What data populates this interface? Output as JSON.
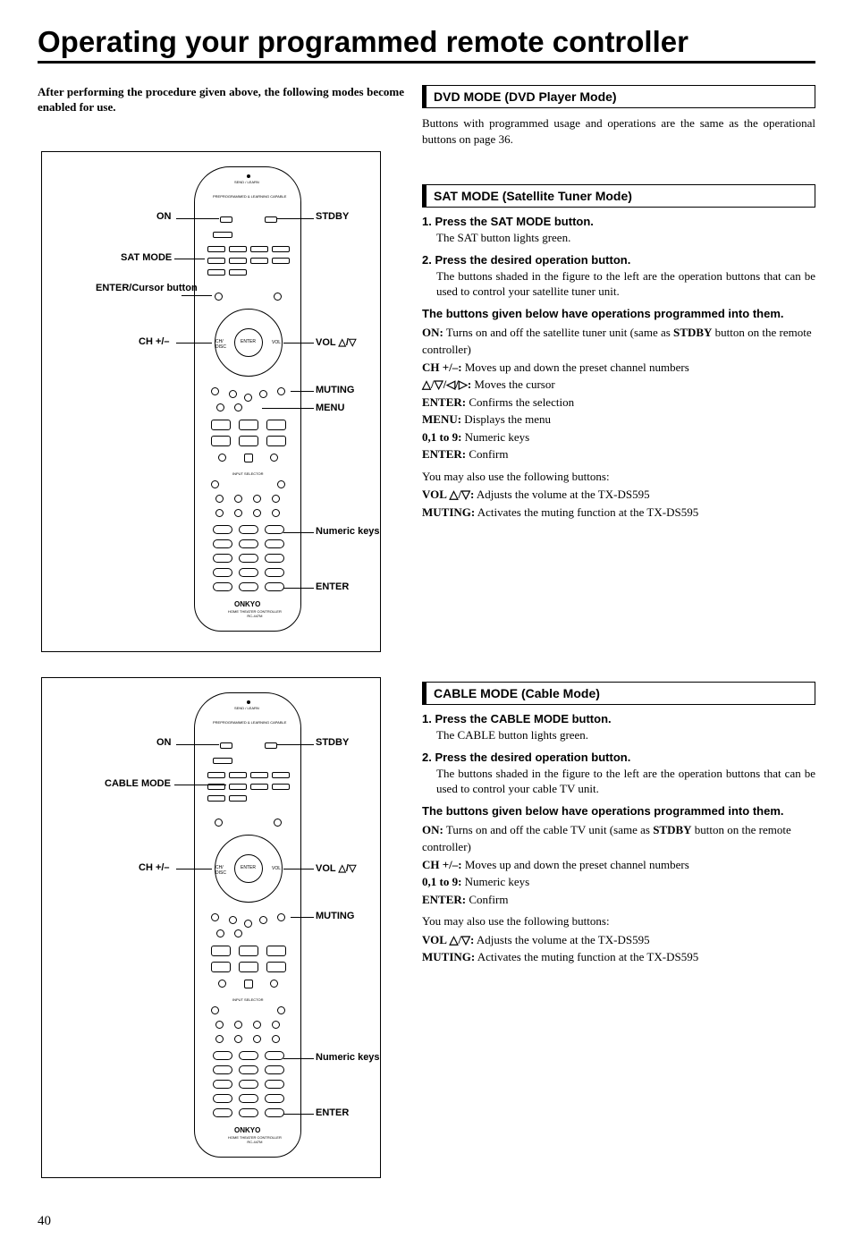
{
  "page_title": "Operating your programmed remote controller",
  "intro": "After performing the procedure given above, the following modes become enabled for use.",
  "page_number": "40",
  "remote_brand": "ONKYO",
  "remote_sublabel": "HOME THEATER CONTROLLER\nRC-447M",
  "remote_top_label": "PREPROGRAMMED & LEARNING CAPABLE",
  "remote_send_learn": "SEND / LEARN",
  "remote1": {
    "callouts": {
      "on": "ON",
      "stdby": "STDBY",
      "mode": "SAT MODE",
      "enter_cursor": "ENTER/Cursor button",
      "ch": "CH +/–",
      "vol": "VOL △/▽",
      "muting": "MUTING",
      "menu": "MENU",
      "numeric": "Numeric keys",
      "enter": "ENTER"
    }
  },
  "remote2": {
    "callouts": {
      "on": "ON",
      "stdby": "STDBY",
      "mode": "CABLE MODE",
      "ch": "CH +/–",
      "vol": "VOL △/▽",
      "muting": "MUTING",
      "numeric": "Numeric keys",
      "enter": "ENTER"
    }
  },
  "dvd": {
    "header": "DVD MODE (DVD Player Mode)",
    "body": "Buttons with programmed usage and operations are the same as the operational buttons on page 36."
  },
  "sat": {
    "header": "SAT MODE (Satellite Tuner Mode)",
    "step1_head": "1. Press the SAT MODE button.",
    "step1_body": "The SAT button lights green.",
    "step2_head": "2. Press the desired operation button.",
    "step2_body": "The buttons shaded in the figure to the left are the operation buttons that can be used to control your satellite tuner unit.",
    "programmed_head": "The buttons given below have operations programmed into them.",
    "defs": [
      {
        "label": "ON:",
        "text": " Turns on and off the satellite tuner unit (same as ",
        "bold2": "STDBY",
        "text2": " button on the remote controller)"
      },
      {
        "label": "CH +/–:",
        "text": " Moves up and down the preset channel numbers"
      },
      {
        "label": "△/▽/◁/▷:",
        "text": " Moves the cursor"
      },
      {
        "label": "ENTER:",
        "text": " Confirms the selection"
      },
      {
        "label": "MENU:",
        "text": " Displays the menu"
      },
      {
        "label": "0,1 to 9:",
        "text": " Numeric keys"
      },
      {
        "label": "ENTER:",
        "text": " Confirm"
      }
    ],
    "also_use": "You may also use the following buttons:",
    "also_defs": [
      {
        "label": "VOL △/▽:",
        "text": " Adjusts the volume at the TX-DS595"
      },
      {
        "label": "MUTING:",
        "text": " Activates the muting function at the TX-DS595"
      }
    ]
  },
  "cable": {
    "header": "CABLE MODE (Cable Mode)",
    "step1_head": "1. Press the CABLE MODE button.",
    "step1_body": "The CABLE button lights green.",
    "step2_head": "2. Press the desired operation button.",
    "step2_body": "The buttons shaded in the figure to the left are the operation buttons that can be used to control your cable TV unit.",
    "programmed_head": "The buttons given below have operations programmed into them.",
    "defs": [
      {
        "label": "ON:",
        "text": " Turns on and off the cable TV unit (same as ",
        "bold2": "STDBY",
        "text2": " button on the remote controller)"
      },
      {
        "label": "CH +/–:",
        "text": " Moves up and down the preset channel numbers"
      },
      {
        "label": "0,1 to 9:",
        "text": " Numeric keys"
      },
      {
        "label": "ENTER:",
        "text": " Confirm"
      }
    ],
    "also_use": "You may also use the following buttons:",
    "also_defs": [
      {
        "label": "VOL △/▽:",
        "text": " Adjusts the volume at the TX-DS595"
      },
      {
        "label": "MUTING:",
        "text": " Activates the muting function at the TX-DS595"
      }
    ]
  }
}
